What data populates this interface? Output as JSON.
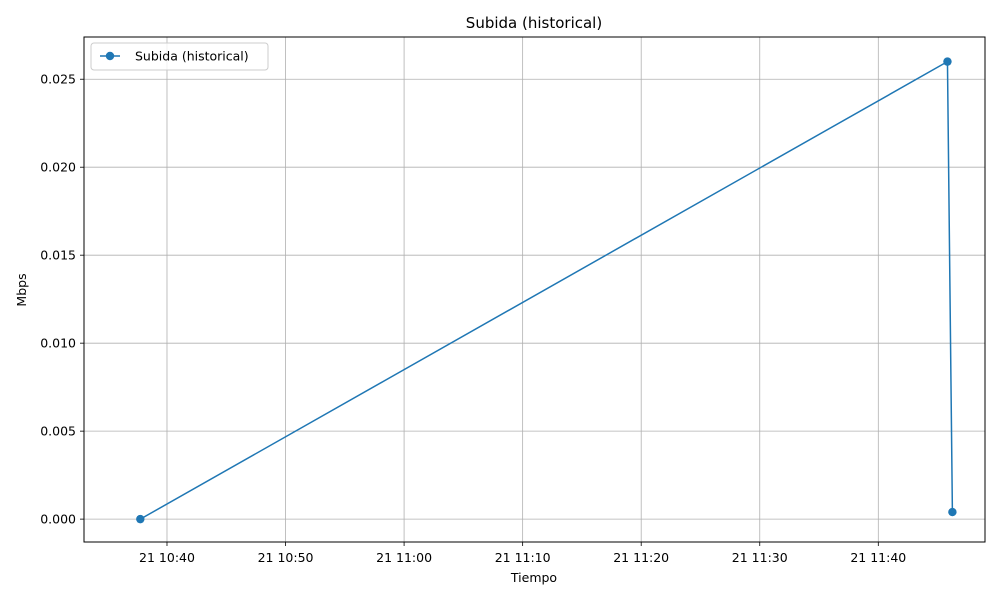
{
  "chart_data": {
    "type": "line",
    "title": "Subida (historical)",
    "xlabel": "Tiempo",
    "ylabel": "Mbps",
    "grid": true,
    "legend_position": "top-left",
    "x_tick_labels": [
      "21 10:40",
      "21 10:50",
      "21 11:00",
      "21 11:10",
      "21 11:20",
      "21 11:30",
      "21 11:40"
    ],
    "y_tick_labels": [
      "0.000",
      "0.005",
      "0.010",
      "0.015",
      "0.020",
      "0.025"
    ],
    "xlim": [
      "2024-01-21T10:33:00",
      "2024-01-21T11:49:00"
    ],
    "ylim": [
      -0.0013,
      0.0274
    ],
    "series": [
      {
        "name": "Subida (historical)",
        "color": "#1f77b4",
        "marker": "circle",
        "x": [
          "2024-01-21T10:37:45",
          "2024-01-21T11:45:50",
          "2024-01-21T11:46:15"
        ],
        "y": [
          0.0,
          0.026,
          0.0004
        ]
      }
    ]
  }
}
